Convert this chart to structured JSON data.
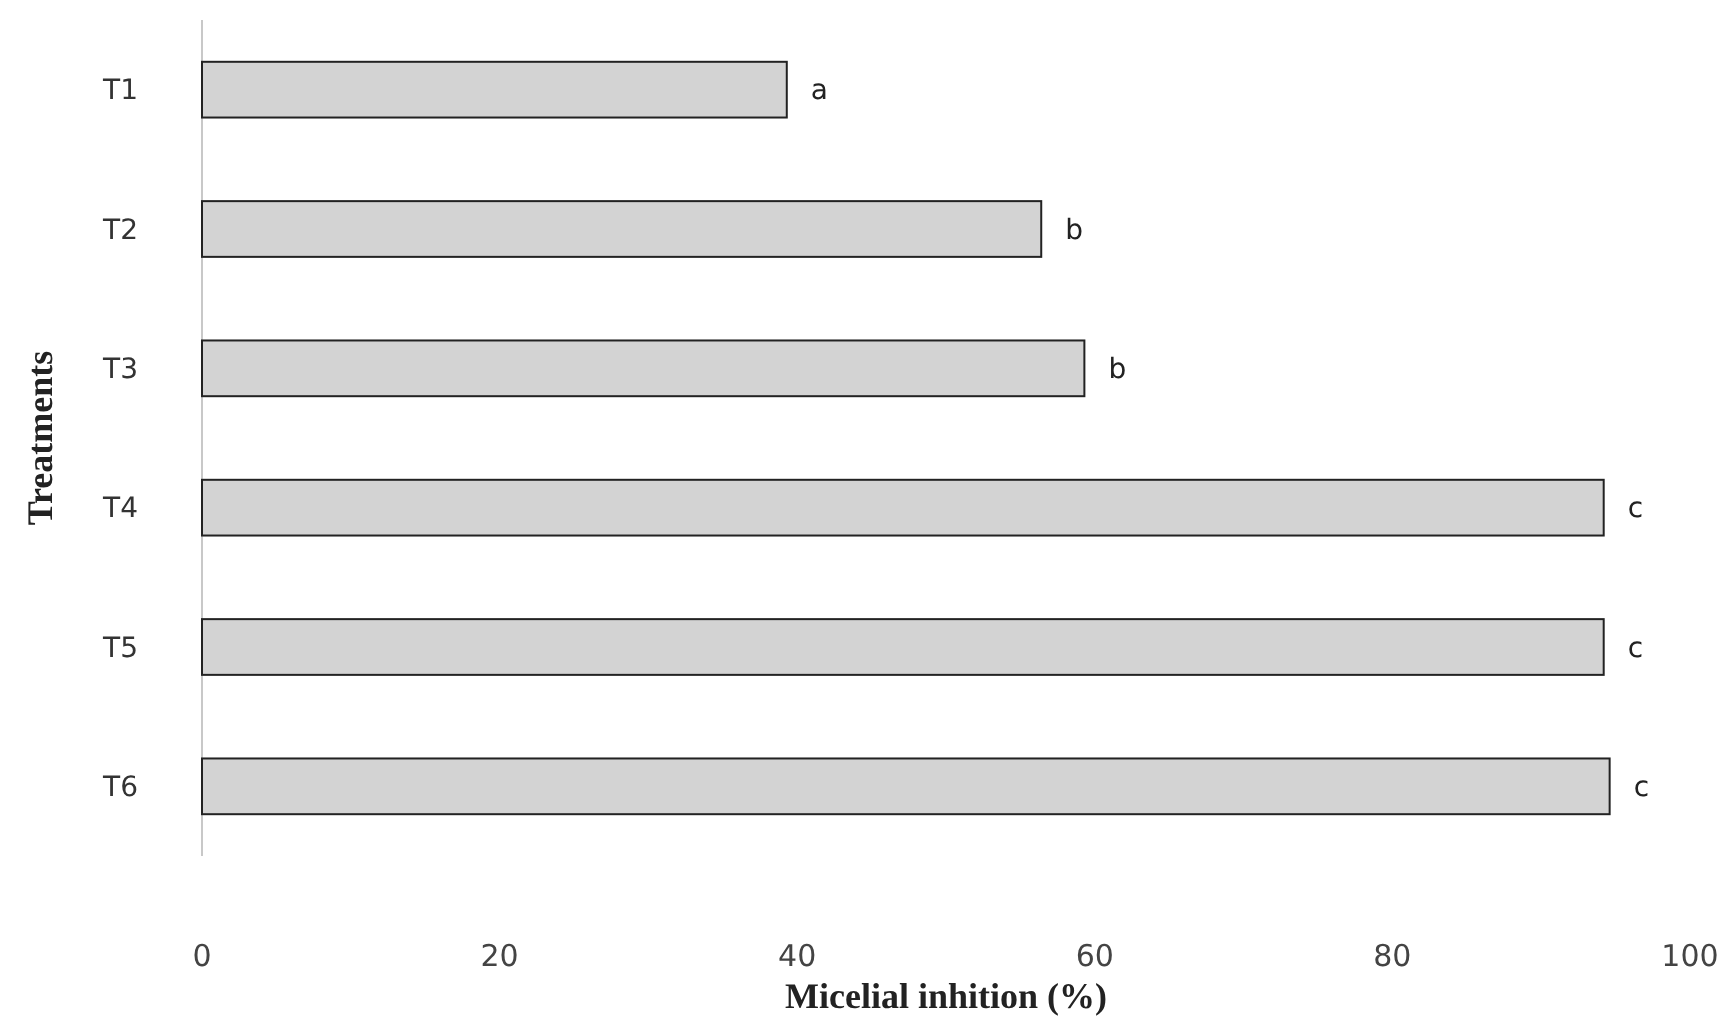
{
  "chart_data": {
    "type": "bar",
    "orientation": "horizontal",
    "xlabel": "Micelial inhition (%)",
    "ylabel": "Treatments",
    "categories": [
      "T1",
      "T2",
      "T3",
      "T4",
      "T5",
      "T6"
    ],
    "values": [
      39.3,
      56.4,
      59.3,
      94.2,
      94.2,
      94.6
    ],
    "value_labels": [
      "a",
      "b",
      "b",
      "c",
      "c",
      "c"
    ],
    "color": "#d3d3d3",
    "xlim": [
      0,
      100
    ],
    "xticks": [
      0,
      20,
      40,
      60,
      80,
      100
    ],
    "grid": false
  }
}
